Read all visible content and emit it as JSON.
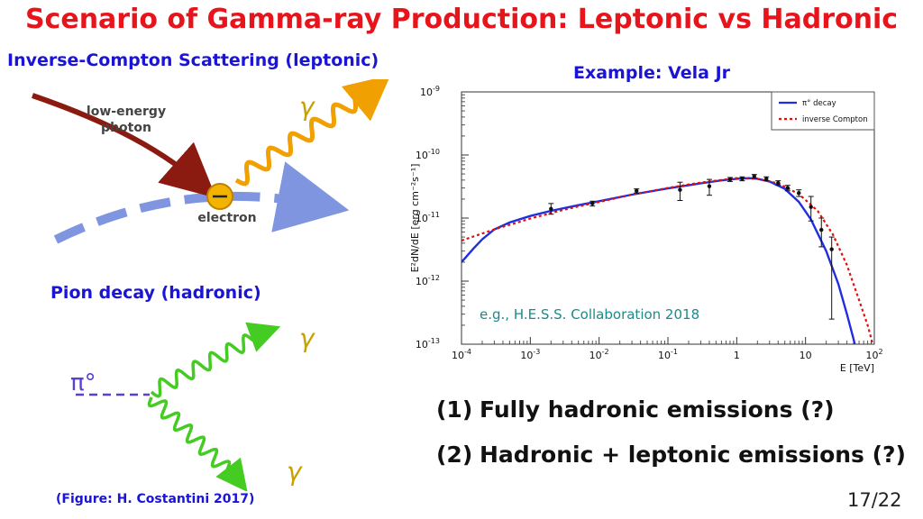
{
  "slide": {
    "title": "Scenario of Gamma-ray Production: Leptonic vs Hadronic",
    "ic_heading": "Inverse-Compton Scattering (leptonic)",
    "example_heading": "Example: Vela Jr",
    "pion_heading": "Pion decay (hadronic)",
    "credit": "(Figure: H. Costantini 2017)",
    "page_number": "17/22",
    "points": [
      {
        "num": "(1)",
        "text": "Fully hadronic emissions (?)"
      },
      {
        "num": "(2)",
        "text": "Hadronic + leptonic emissions (?)"
      }
    ]
  },
  "ic_diagram": {
    "photon_label_line1": "low-energy",
    "photon_label_line2": "photon",
    "electron_label": "electron",
    "gamma_symbol": "γ",
    "colors": {
      "photon": "#8b1a10",
      "gamma": "#f0a000",
      "electron_path": "#7f95e0",
      "electron": "#f2b400"
    }
  },
  "pion_diagram": {
    "pion_symbol": "π°",
    "gamma_symbol_1": "γ",
    "gamma_symbol_2": "γ",
    "colors": {
      "pion": "#5a3fd6",
      "gamma": "#44cc22",
      "symbol": "#c8a000"
    }
  },
  "chart_data": {
    "type": "line",
    "title": "",
    "xlabel": "E [TeV]",
    "ylabel": "E²dN/dE [erg cm⁻²s⁻¹]",
    "x_scale": "log",
    "y_scale": "log",
    "xlim": [
      0.0001,
      100
    ],
    "ylim": [
      1e-13,
      1e-09
    ],
    "x_ticks": [
      {
        "value": 0.0001,
        "base": "10",
        "exp": "-4"
      },
      {
        "value": 0.001,
        "base": "10",
        "exp": "-3"
      },
      {
        "value": 0.01,
        "base": "10",
        "exp": "-2"
      },
      {
        "value": 0.1,
        "base": "10",
        "exp": "-1"
      },
      {
        "value": 1,
        "base": "1",
        "exp": ""
      },
      {
        "value": 10,
        "base": "10",
        "exp": ""
      },
      {
        "value": 100,
        "base": "10",
        "exp": "2"
      }
    ],
    "y_ticks": [
      {
        "value": 1e-09,
        "base": "10",
        "exp": "-9"
      },
      {
        "value": 1e-10,
        "base": "10",
        "exp": "-10"
      },
      {
        "value": 1e-11,
        "base": "10",
        "exp": "-11"
      },
      {
        "value": 1e-12,
        "base": "10",
        "exp": "-12"
      },
      {
        "value": 1e-13,
        "base": "10",
        "exp": "-13"
      }
    ],
    "legend_position": "top-right",
    "annotation": "e.g., H.E.S.S. Collaboration 2018",
    "series": [
      {
        "name": "π° decay",
        "color": "#1f2fe0",
        "style": "solid",
        "x": [
          0.0001,
          0.00015,
          0.0002,
          0.0003,
          0.0005,
          0.001,
          0.002,
          0.005,
          0.01,
          0.03,
          0.1,
          0.3,
          0.6,
          1,
          1.5,
          2,
          3,
          5,
          8,
          12,
          20,
          30,
          40,
          50,
          60
        ],
        "y": [
          2e-12,
          3.3e-12,
          4.6e-12,
          6.6e-12,
          8.5e-12,
          1.08e-11,
          1.3e-11,
          1.6e-11,
          1.85e-11,
          2.35e-11,
          2.95e-11,
          3.55e-11,
          3.95e-11,
          4.2e-11,
          4.3e-11,
          4.2e-11,
          3.8e-11,
          2.9e-11,
          1.8e-11,
          9.5e-12,
          3e-12,
          9e-13,
          3e-13,
          1.2e-13,
          5e-14
        ]
      },
      {
        "name": "inverse Compton",
        "color": "#dd1111",
        "style": "dotted",
        "x": [
          0.0001,
          0.0003,
          0.001,
          0.003,
          0.01,
          0.03,
          0.1,
          0.3,
          0.7,
          1,
          2,
          4,
          8,
          15,
          25,
          40,
          60,
          80,
          100
        ],
        "y": [
          4.4e-12,
          6.6e-12,
          9.8e-12,
          1.35e-11,
          1.8e-11,
          2.35e-11,
          3e-11,
          3.65e-11,
          4.1e-11,
          4.3e-11,
          4.2e-11,
          3.55e-11,
          2.4e-11,
          1.3e-11,
          5.5e-12,
          1.8e-12,
          5e-13,
          2e-13,
          8e-14
        ]
      }
    ],
    "data_points": [
      {
        "x": 0.002,
        "y": 1.4e-11,
        "ylo": 1.15e-11,
        "yhi": 1.7e-11
      },
      {
        "x": 0.008,
        "y": 1.7e-11,
        "ylo": 1.55e-11,
        "yhi": 1.85e-11
      },
      {
        "x": 0.035,
        "y": 2.7e-11,
        "ylo": 2.5e-11,
        "yhi": 2.9e-11
      },
      {
        "x": 0.15,
        "y": 2.8e-11,
        "ylo": 1.9e-11,
        "yhi": 3.7e-11
      },
      {
        "x": 0.4,
        "y": 3.2e-11,
        "ylo": 2.3e-11,
        "yhi": 4.1e-11
      },
      {
        "x": 0.8,
        "y": 4.1e-11,
        "ylo": 3.8e-11,
        "yhi": 4.4e-11
      },
      {
        "x": 1.2,
        "y": 4.2e-11,
        "ylo": 3.9e-11,
        "yhi": 4.5e-11
      },
      {
        "x": 1.8,
        "y": 4.6e-11,
        "ylo": 4.3e-11,
        "yhi": 4.9e-11
      },
      {
        "x": 2.7,
        "y": 4.2e-11,
        "ylo": 3.9e-11,
        "yhi": 4.5e-11
      },
      {
        "x": 4,
        "y": 3.6e-11,
        "ylo": 3.3e-11,
        "yhi": 3.9e-11
      },
      {
        "x": 5.5,
        "y": 3e-11,
        "ylo": 2.7e-11,
        "yhi": 3.3e-11
      },
      {
        "x": 8,
        "y": 2.5e-11,
        "ylo": 2.2e-11,
        "yhi": 2.8e-11
      },
      {
        "x": 12,
        "y": 1.5e-11,
        "ylo": 9e-12,
        "yhi": 2.2e-11
      },
      {
        "x": 17,
        "y": 6.5e-12,
        "ylo": 3.5e-12,
        "yhi": 1e-11
      },
      {
        "x": 24,
        "y": 3.2e-12,
        "ylo": 2.5e-13,
        "yhi": 5e-12
      }
    ]
  }
}
